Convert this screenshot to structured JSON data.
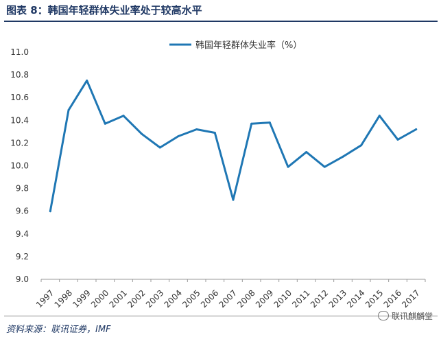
{
  "header": {
    "title": "图表 8：韩国年轻群体失业率处于较高水平"
  },
  "footer": {
    "source": "资料来源：联讯证券，IMF",
    "watermark": "联讯麒麟堂"
  },
  "colors": {
    "series": "#1f77b4",
    "title": "#1f3864"
  },
  "chart_data": {
    "type": "line",
    "x": [
      "1997",
      "1998",
      "1999",
      "2000",
      "2001",
      "2002",
      "2003",
      "2004",
      "2005",
      "2006",
      "2007",
      "2008",
      "2009",
      "2010",
      "2011",
      "2012",
      "2013",
      "2014",
      "2015",
      "2016",
      "2017"
    ],
    "series": [
      {
        "name": "韩国年轻群体失业率（%）",
        "values": [
          9.6,
          10.49,
          10.75,
          10.37,
          10.44,
          10.28,
          10.16,
          10.26,
          10.32,
          10.29,
          9.7,
          10.37,
          10.38,
          9.99,
          10.12,
          9.99,
          10.08,
          10.18,
          10.44,
          10.23,
          10.32
        ]
      }
    ],
    "yticks": [
      "11.0",
      "10.8",
      "10.6",
      "10.4",
      "10.2",
      "10.0",
      "9.8",
      "9.6",
      "9.4",
      "9.2",
      "9.0"
    ],
    "ylim": [
      9.0,
      11.0
    ],
    "legend": "top-center",
    "grid": false
  }
}
